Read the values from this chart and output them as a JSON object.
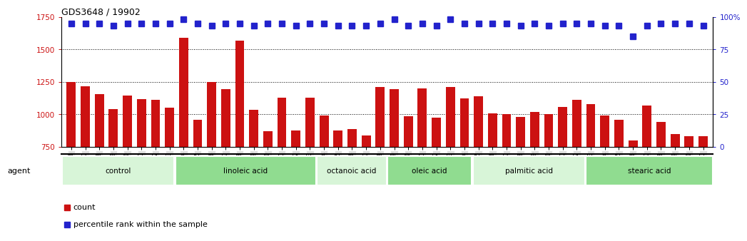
{
  "title": "GDS3648 / 19902",
  "samples": [
    "GSM525196",
    "GSM525197",
    "GSM525198",
    "GSM525199",
    "GSM525200",
    "GSM525201",
    "GSM525202",
    "GSM525203",
    "GSM525204",
    "GSM525205",
    "GSM525206",
    "GSM525207",
    "GSM525208",
    "GSM525209",
    "GSM525210",
    "GSM525211",
    "GSM525212",
    "GSM525213",
    "GSM525214",
    "GSM525215",
    "GSM525216",
    "GSM525217",
    "GSM525218",
    "GSM525219",
    "GSM525220",
    "GSM525221",
    "GSM525222",
    "GSM525223",
    "GSM525224",
    "GSM525225",
    "GSM525226",
    "GSM525227",
    "GSM525228",
    "GSM525229",
    "GSM525230",
    "GSM525231",
    "GSM525232",
    "GSM525233",
    "GSM525234",
    "GSM525235",
    "GSM525236",
    "GSM525237",
    "GSM525238",
    "GSM525239",
    "GSM525240",
    "GSM525241"
  ],
  "counts": [
    1250,
    1215,
    1155,
    1040,
    1145,
    1115,
    1110,
    1050,
    1590,
    960,
    1250,
    1195,
    1565,
    1035,
    870,
    1130,
    875,
    1130,
    990,
    875,
    885,
    835,
    1210,
    1195,
    985,
    1200,
    975,
    1210,
    1120,
    1140,
    1005,
    1000,
    980,
    1020,
    1000,
    1055,
    1110,
    1080,
    990,
    960,
    800,
    1065,
    940,
    850,
    830,
    830
  ],
  "percentile_ranks": [
    95,
    95,
    95,
    93,
    95,
    95,
    95,
    95,
    98,
    95,
    93,
    95,
    95,
    93,
    95,
    95,
    93,
    95,
    95,
    93,
    93,
    93,
    95,
    98,
    93,
    95,
    93,
    98,
    95,
    95,
    95,
    95,
    93,
    95,
    93,
    95,
    95,
    95,
    93,
    93,
    85,
    93,
    95,
    95,
    95,
    93
  ],
  "groups": [
    {
      "label": "control",
      "start": 0,
      "end": 8,
      "color": "#d8f5d8"
    },
    {
      "label": "linoleic acid",
      "start": 8,
      "end": 18,
      "color": "#90dc90"
    },
    {
      "label": "octanoic acid",
      "start": 18,
      "end": 23,
      "color": "#d8f5d8"
    },
    {
      "label": "oleic acid",
      "start": 23,
      "end": 29,
      "color": "#90dc90"
    },
    {
      "label": "palmitic acid",
      "start": 29,
      "end": 37,
      "color": "#d8f5d8"
    },
    {
      "label": "stearic acid",
      "start": 37,
      "end": 46,
      "color": "#90dc90"
    }
  ],
  "ylim_left": [
    750,
    1750
  ],
  "ylim_right": [
    0,
    100
  ],
  "yticks_left": [
    750,
    1000,
    1250,
    1500,
    1750
  ],
  "yticks_right": [
    0,
    25,
    50,
    75,
    100
  ],
  "ytick_right_labels": [
    "0",
    "25",
    "50",
    "75",
    "100%"
  ],
  "bar_color": "#cc1111",
  "dot_color": "#2222cc",
  "grid_color": "black",
  "gridlines_at": [
    1000,
    1250,
    1500
  ]
}
